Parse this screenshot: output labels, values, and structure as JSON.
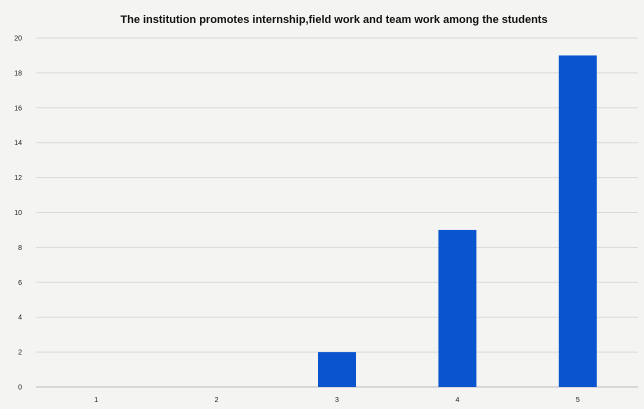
{
  "chart_data": {
    "type": "bar",
    "title": "The institution promotes internship,field work and team work among the students",
    "xlabel": "",
    "ylabel": "",
    "categories": [
      "1",
      "2",
      "3",
      "4",
      "5"
    ],
    "values": [
      0,
      0,
      2,
      9,
      19
    ],
    "ylim": [
      0,
      20
    ],
    "yticks": [
      0,
      2,
      4,
      6,
      8,
      10,
      12,
      14,
      16,
      18,
      20
    ],
    "grid": true,
    "legend": "none",
    "bar_color": "#0a55cf",
    "background": "#f4f4f2"
  }
}
